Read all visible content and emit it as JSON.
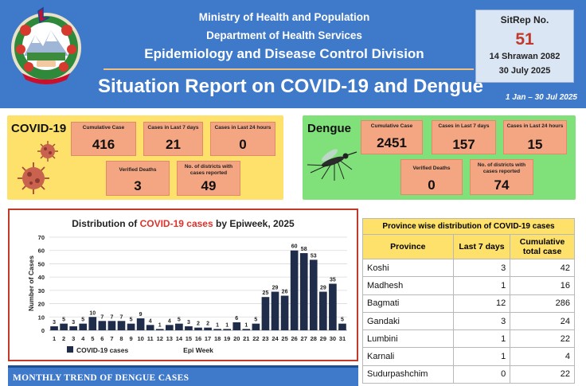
{
  "header": {
    "ministry": "Ministry of Health and Population",
    "department": "Department of Health Services",
    "division": "Epidemiology and Disease Control Division",
    "title": "Situation Report on COVID-19 and Dengue",
    "period": "1 Jan – 30 Jul 2025",
    "sitrep_label": "SitRep No.",
    "sitrep_number": "51",
    "date_nepali": "14 Shrawan 2082",
    "date_english": "30 July 2025"
  },
  "covid": {
    "title": "COVID-19",
    "stats": [
      {
        "label": "Cumulative Case",
        "value": "416"
      },
      {
        "label": "Cases in Last 7 days",
        "value": "21"
      },
      {
        "label": "Cases in Last 24 hours",
        "value": "0"
      },
      {
        "label": "Verified Deaths",
        "value": "3"
      },
      {
        "label": "No. of districts with cases reported",
        "value": "49"
      }
    ]
  },
  "dengue": {
    "title": "Dengue",
    "stats": [
      {
        "label": "Cumulative Case",
        "value": "2451"
      },
      {
        "label": "Cases in Last 7 days",
        "value": "157"
      },
      {
        "label": "Cases in Last 24 hours",
        "value": "15"
      },
      {
        "label": "Verified Deaths",
        "value": "0"
      },
      {
        "label": "No. of districts with cases reported",
        "value": "74"
      }
    ]
  },
  "chart_data": {
    "type": "bar",
    "title_prefix": "Distribution of ",
    "title_highlight": "COVID-19 cases",
    "title_suffix": " by Epiweek, 2025",
    "xlabel": "Epi Week",
    "ylabel": "Number of Cases",
    "ylim": [
      0,
      70
    ],
    "yticks": [
      0,
      10,
      20,
      30,
      40,
      50,
      60,
      70
    ],
    "grid": true,
    "legend": "COVID-19 cases",
    "legend_position": "bottom-left",
    "bar_color": "#1f2d4a",
    "categories": [
      "1",
      "2",
      "3",
      "4",
      "5",
      "6",
      "7",
      "8",
      "9",
      "10",
      "11",
      "12",
      "13",
      "14",
      "15",
      "16",
      "17",
      "18",
      "19",
      "20",
      "21",
      "22",
      "23",
      "24",
      "25",
      "26",
      "27",
      "28",
      "29",
      "30",
      "31"
    ],
    "values": [
      3,
      5,
      3,
      5,
      10,
      7,
      7,
      7,
      5,
      9,
      4,
      1,
      4,
      5,
      3,
      2,
      2,
      1,
      1,
      6,
      1,
      5,
      25,
      29,
      26,
      60,
      58,
      53,
      29,
      35,
      5
    ]
  },
  "province_table": {
    "caption": "Province wise distribution of COVID-19 cases",
    "headers": [
      "Province",
      "Last 7 days",
      "Cumulative total case"
    ],
    "rows": [
      [
        "Koshi",
        "3",
        "42"
      ],
      [
        "Madhesh",
        "1",
        "16"
      ],
      [
        "Bagmati",
        "12",
        "286"
      ],
      [
        "Gandaki",
        "3",
        "24"
      ],
      [
        "Lumbini",
        "1",
        "22"
      ],
      [
        "Karnali",
        "1",
        "4"
      ],
      [
        "Sudurpashchim",
        "0",
        "22"
      ]
    ]
  },
  "monthly": {
    "title": "MONTHLY TREND OF DENGUE CASES"
  },
  "colors": {
    "header_blue": "#3f79c9",
    "covid_panel": "#fde16a",
    "dengue_panel": "#80e07a",
    "stat_box": "#f4a582",
    "highlight_red": "#e0302a"
  }
}
